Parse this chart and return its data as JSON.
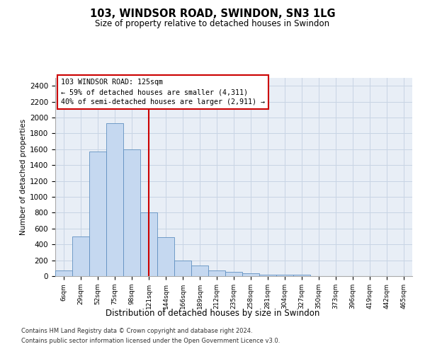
{
  "title1": "103, WINDSOR ROAD, SWINDON, SN3 1LG",
  "title2": "Size of property relative to detached houses in Swindon",
  "xlabel": "Distribution of detached houses by size in Swindon",
  "ylabel": "Number of detached properties",
  "categories": [
    "6sqm",
    "29sqm",
    "52sqm",
    "75sqm",
    "98sqm",
    "121sqm",
    "144sqm",
    "166sqm",
    "189sqm",
    "212sqm",
    "235sqm",
    "258sqm",
    "281sqm",
    "304sqm",
    "327sqm",
    "350sqm",
    "373sqm",
    "396sqm",
    "419sqm",
    "442sqm",
    "465sqm"
  ],
  "values": [
    75,
    500,
    1575,
    1925,
    1600,
    800,
    490,
    200,
    130,
    75,
    55,
    35,
    15,
    15,
    15,
    0,
    0,
    0,
    0,
    0,
    0
  ],
  "bar_color": "#c5d8f0",
  "bar_edge_color": "#6090c0",
  "vline_position": 5.0,
  "vline_color": "#cc0000",
  "annotation_text": "103 WINDSOR ROAD: 125sqm\n← 59% of detached houses are smaller (4,311)\n40% of semi-detached houses are larger (2,911) →",
  "annotation_box_facecolor": "#ffffff",
  "annotation_box_edgecolor": "#cc0000",
  "ylim": [
    0,
    2500
  ],
  "yticks": [
    0,
    200,
    400,
    600,
    800,
    1000,
    1200,
    1400,
    1600,
    1800,
    2000,
    2200,
    2400
  ],
  "grid_color": "#c8d4e4",
  "plot_bg_color": "#e8eef6",
  "footer1": "Contains HM Land Registry data © Crown copyright and database right 2024.",
  "footer2": "Contains public sector information licensed under the Open Government Licence v3.0."
}
